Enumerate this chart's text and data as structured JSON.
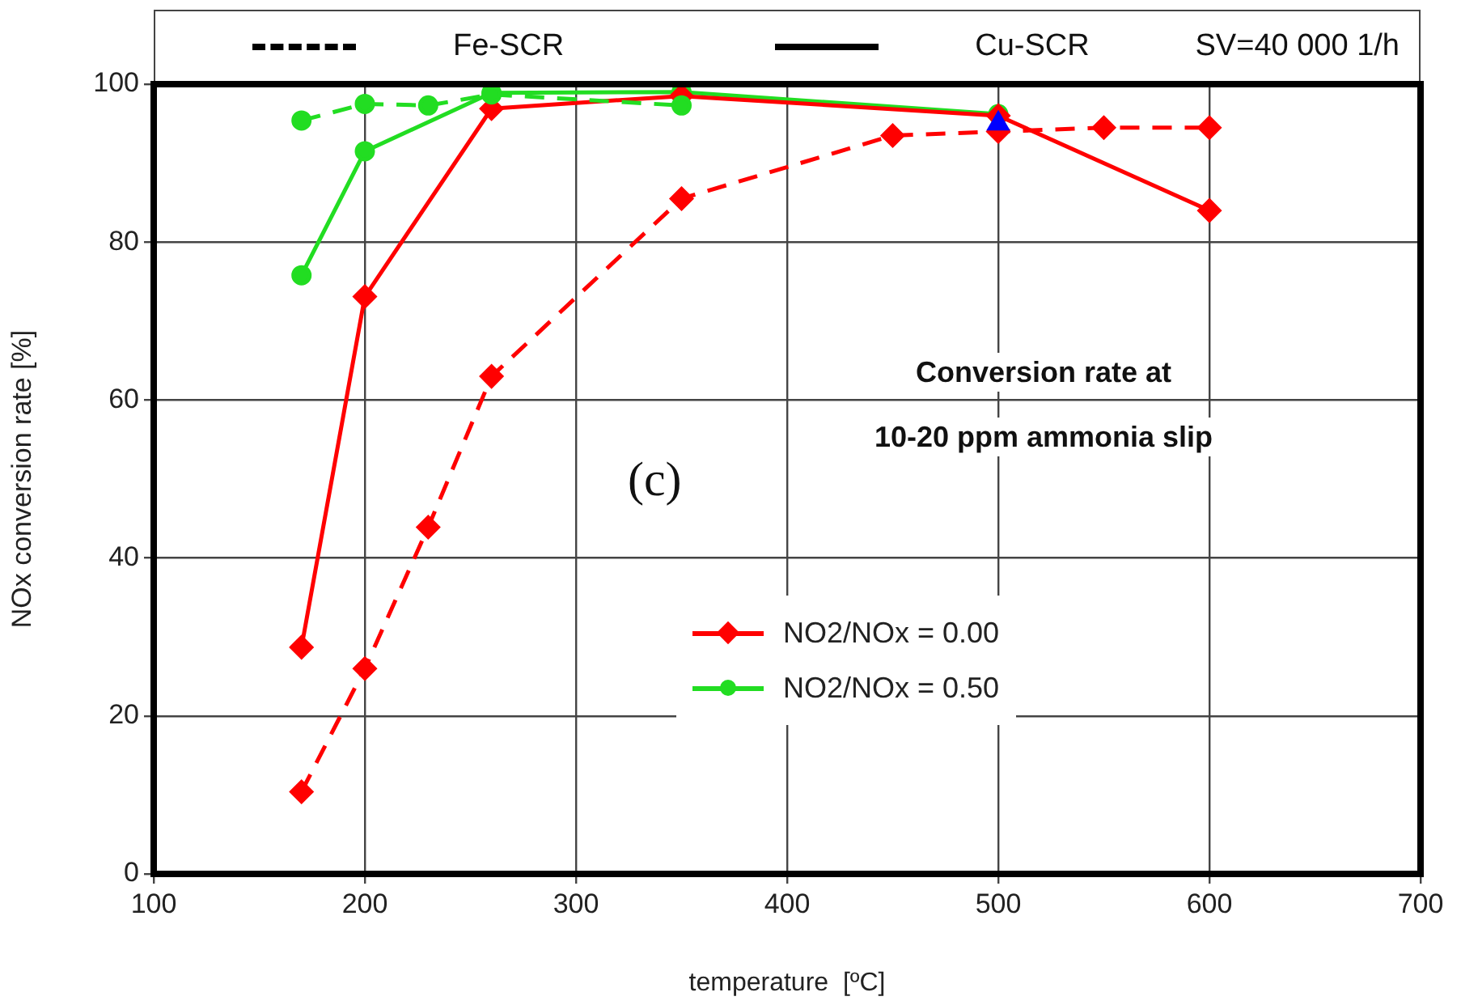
{
  "chart_data": {
    "type": "line",
    "xlabel": "temperature  [ºC]",
    "ylabel": "NOx conversion rate [%]",
    "xlim": [
      100,
      700
    ],
    "xticks": [
      100,
      200,
      300,
      400,
      500,
      600,
      700
    ],
    "ylim": [
      0,
      100
    ],
    "yticks": [
      0,
      20,
      40,
      60,
      80,
      100
    ],
    "grid": true,
    "legend": "bottom",
    "annotations": [
      "Fe-SCR",
      "Cu-SCR",
      "SV=40 000 1/h",
      "Conversion rate at",
      "10-20 ppm ammonia slip",
      "(c)"
    ],
    "series": [
      {
        "type": "scatter",
        "color": "#0000ff",
        "marker": "triangle",
        "x": [
          500
        ],
        "values": [
          95
        ]
      },
      {
        "color": "#ff0000",
        "marker": "diamond",
        "line_style": "dashed",
        "x": [
          170,
          200,
          230,
          260,
          350,
          450,
          500,
          550,
          600
        ],
        "values": [
          10.4,
          26,
          43.9,
          63,
          85.5,
          93.5,
          94,
          94.5,
          94.5
        ]
      },
      {
        "color": "#22dd22",
        "marker": "circle",
        "line_style": "dashed",
        "x": [
          170,
          200,
          230,
          260,
          350
        ],
        "values": [
          95.4,
          97.5,
          97.3,
          98.7,
          97.3
        ]
      },
      {
        "name": "NO2/NOx = 0.00",
        "color": "#ff0000",
        "marker": "diamond",
        "line_style": "solid",
        "x": [
          170,
          200,
          260,
          350,
          500,
          600
        ],
        "values": [
          28.7,
          73.1,
          96.9,
          98.5,
          96,
          84
        ]
      },
      {
        "name": "NO2/NOx = 0.50",
        "color": "#22dd22",
        "marker": "circle",
        "line_style": "solid",
        "x": [
          170,
          200,
          260,
          350,
          500
        ],
        "values": [
          75.8,
          91.5,
          98.9,
          99,
          96.2
        ]
      }
    ]
  }
}
